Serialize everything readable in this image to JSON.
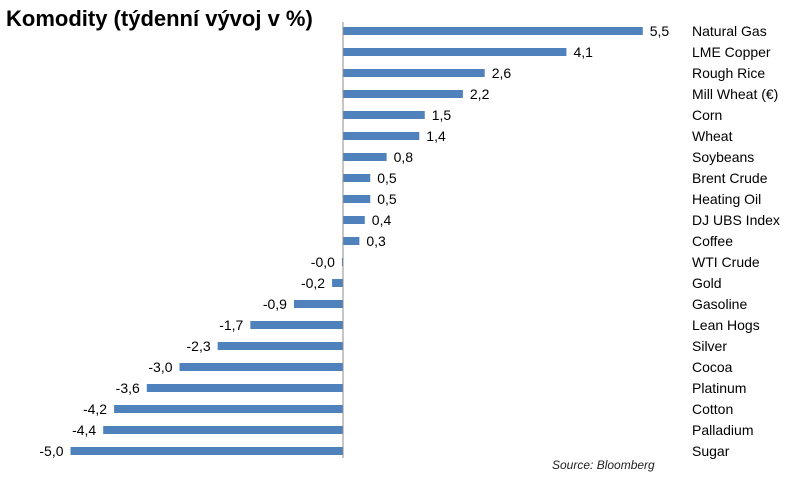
{
  "chart_data": {
    "type": "bar",
    "orientation": "horizontal",
    "title": "Komodity (týdenní vývoj v %)",
    "source": "Source: Bloomberg",
    "bar_color": "#4f81bd",
    "categories": [
      "Natural Gas",
      "LME Copper",
      "Rough Rice",
      "Mill Wheat (€)",
      "Corn",
      "Wheat",
      "Soybeans",
      "Brent Crude",
      "Heating Oil",
      "DJ UBS Index",
      "Coffee",
      "WTI Crude",
      "Gold",
      "Gasoline",
      "Lean Hogs",
      "Silver",
      "Cocoa",
      "Platinum",
      "Cotton",
      "Palladium",
      "Sugar"
    ],
    "values": [
      5.5,
      4.1,
      2.6,
      2.2,
      1.5,
      1.4,
      0.8,
      0.5,
      0.5,
      0.4,
      0.3,
      -0.02,
      -0.2,
      -0.9,
      -1.7,
      -2.3,
      -3.0,
      -3.6,
      -4.2,
      -4.4,
      -5.0
    ],
    "value_labels": [
      "5,5",
      "4,1",
      "2,6",
      "2,2",
      "1,5",
      "1,4",
      "0,8",
      "0,5",
      "0,5",
      "0,4",
      "0,3",
      "-0,0",
      "-0,2",
      "-0,9",
      "-1,7",
      "-2,3",
      "-3,0",
      "-3,6",
      "-4,2",
      "-4,4",
      "-5,0"
    ],
    "xlim": [
      -5.0,
      5.5
    ],
    "grid": false,
    "legend": "none"
  }
}
